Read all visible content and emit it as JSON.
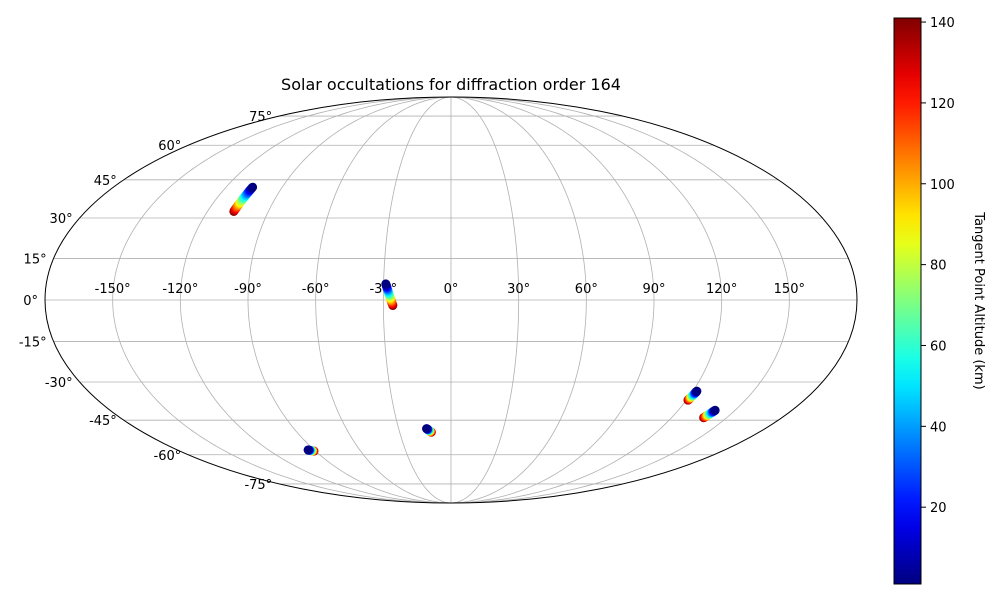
{
  "chart_data": {
    "type": "scatter",
    "projection": "mollweide",
    "title": "Solar occultations for diffraction order 164",
    "lon_ticks": [
      "-150°",
      "-120°",
      "-90°",
      "-60°",
      "-30°",
      "0°",
      "30°",
      "60°",
      "90°",
      "120°",
      "150°"
    ],
    "lon_tick_values": [
      -150,
      -120,
      -90,
      -60,
      -30,
      0,
      30,
      60,
      90,
      120,
      150
    ],
    "lat_ticks": [
      "75°",
      "60°",
      "45°",
      "30°",
      "15°",
      "0°",
      "-15°",
      "-30°",
      "-45°",
      "-60°",
      "-75°"
    ],
    "lat_tick_values": [
      75,
      60,
      45,
      30,
      15,
      0,
      -15,
      -30,
      -45,
      -60,
      -75
    ],
    "grid": true,
    "colorbar": {
      "label": "Tangent Point Altitude (km)",
      "colormap": "jet",
      "range": [
        1,
        141
      ],
      "tick_values": [
        20,
        40,
        60,
        80,
        100,
        120,
        140
      ],
      "tick_labels": [
        "20",
        "40",
        "60",
        "80",
        "100",
        "120",
        "140"
      ],
      "location": "right"
    },
    "series": [
      {
        "lon_start": -105.8,
        "lat_start": 42.0,
        "lon_end": -107.0,
        "lat_end": 32.5,
        "alt_start": 1,
        "alt_end": 140
      },
      {
        "lon_start": -29.0,
        "lat_start": 5.8,
        "lon_end": -25.8,
        "lat_end": -2.0,
        "alt_start": 1,
        "alt_end": 140
      },
      {
        "lon_start": -14.0,
        "lat_start": -48.5,
        "lon_end": -11.5,
        "lat_end": -50.0,
        "alt_start": 1,
        "alt_end": 140
      },
      {
        "lon_start": -94.0,
        "lat_start": -57.8,
        "lon_end": -91.0,
        "lat_end": -58.3,
        "alt_start": 1,
        "alt_end": 140
      },
      {
        "lon_start": 122.0,
        "lat_start": -33.5,
        "lon_end": 120.8,
        "lat_end": -37.0,
        "alt_start": 1,
        "alt_end": 140
      },
      {
        "lon_start": 139.5,
        "lat_start": -41.0,
        "lon_end": 137.5,
        "lat_end": -44.0,
        "alt_start": 1,
        "alt_end": 140
      }
    ]
  }
}
